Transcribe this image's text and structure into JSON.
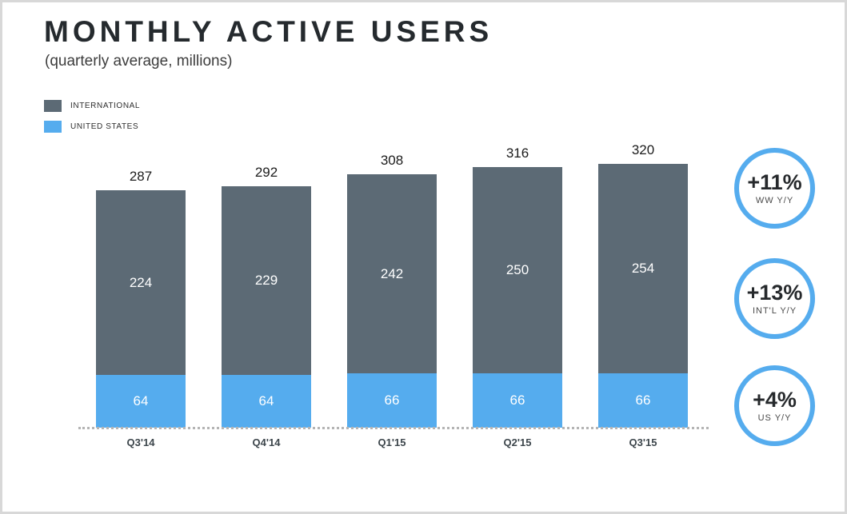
{
  "header": {
    "title": "MONTHLY ACTIVE USERS",
    "subtitle": "(quarterly average, millions)"
  },
  "colors": {
    "international_gray": "#5c6a75",
    "united_states_blue": "#55acee",
    "badge_ring_blue": "#55acee"
  },
  "legend": [
    {
      "label": "INTERNATIONAL",
      "color": "#5c6a75"
    },
    {
      "label": "UNITED STATES",
      "color": "#55acee"
    }
  ],
  "chart_data": {
    "type": "bar",
    "stacked": true,
    "title": "MONTHLY ACTIVE USERS",
    "subtitle": "(quarterly average, millions)",
    "categories": [
      "Q3'14",
      "Q4'14",
      "Q1'15",
      "Q2'15",
      "Q3'15"
    ],
    "series": [
      {
        "name": "UNITED STATES",
        "color": "#55acee",
        "values": [
          64,
          64,
          66,
          66,
          66
        ]
      },
      {
        "name": "INTERNATIONAL",
        "color": "#5c6a75",
        "values": [
          224,
          229,
          242,
          250,
          254
        ]
      }
    ],
    "totals": [
      287,
      292,
      308,
      316,
      320
    ],
    "xlabel": "",
    "ylabel": "",
    "ylim": [
      0,
      340
    ],
    "grid": false,
    "legend_position": "top-left",
    "units": "millions"
  },
  "badges": [
    {
      "value": "+11%",
      "label": "WW Y/Y"
    },
    {
      "value": "+13%",
      "label": "INT'L Y/Y"
    },
    {
      "value": "+4%",
      "label": "US Y/Y"
    }
  ]
}
